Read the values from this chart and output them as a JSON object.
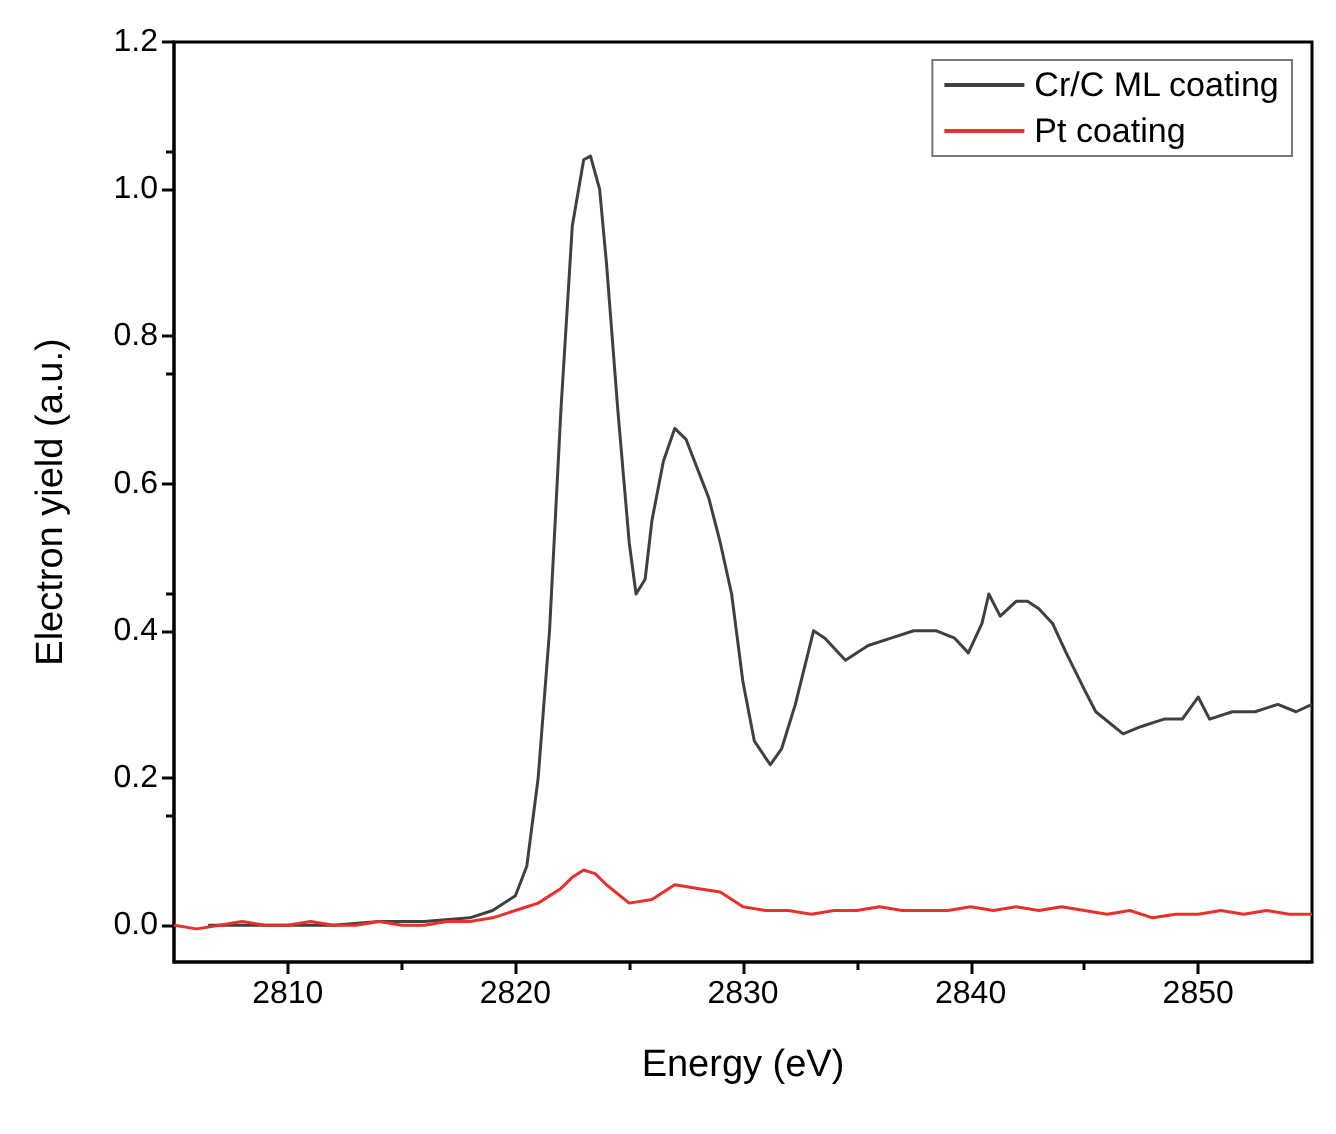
{
  "chart_data": {
    "type": "line",
    "xlabel": "Energy (eV)",
    "ylabel": "Electron yield (a.u.)",
    "xlim": [
      2805,
      2855
    ],
    "xticks": [
      2810,
      2820,
      2830,
      2840,
      2850
    ],
    "ylim": [
      -0.05,
      1.2
    ],
    "yticks": [
      {
        "value": 0,
        "label": "0.0"
      },
      0.2,
      0.4,
      0.6,
      0.8,
      {
        "value": 1,
        "label": "1.0"
      },
      1.2
    ],
    "grid": false,
    "legend": "top right",
    "marker": "none",
    "line_style": "solid",
    "series": [
      {
        "name": "Cr/C ML coating",
        "color": "#404040",
        "x": [
          2806.5,
          2808,
          2810,
          2812,
          2814,
          2816,
          2818,
          2819,
          2820,
          2820.5,
          2821,
          2821.5,
          2822,
          2822.5,
          2823,
          2823.3,
          2823.7,
          2824,
          2824.5,
          2825,
          2825.3,
          2825.7,
          2826,
          2826.5,
          2827,
          2827.5,
          2828,
          2828.5,
          2829,
          2829.5,
          2830,
          2830.5,
          2831.2,
          2831.7,
          2832.3,
          2833.1,
          2833.6,
          2834.5,
          2835.5,
          2836.5,
          2837.5,
          2838.5,
          2839.3,
          2839.9,
          2840.5,
          2840.8,
          2841.3,
          2842,
          2842.5,
          2843,
          2843.6,
          2844.2,
          2845,
          2845.5,
          2846.7,
          2847.5,
          2848.5,
          2849.3,
          2850,
          2850.5,
          2851.5,
          2852.5,
          2853.5,
          2854.3,
          2855
        ],
        "values": [
          0.0,
          0.0,
          0.0,
          0.0,
          0.005,
          0.005,
          0.01,
          0.02,
          0.04,
          0.08,
          0.2,
          0.4,
          0.7,
          0.95,
          1.04,
          1.045,
          1.0,
          0.9,
          0.7,
          0.52,
          0.45,
          0.47,
          0.55,
          0.63,
          0.675,
          0.66,
          0.62,
          0.58,
          0.52,
          0.45,
          0.33,
          0.25,
          0.218,
          0.24,
          0.3,
          0.4,
          0.39,
          0.36,
          0.38,
          0.39,
          0.4,
          0.4,
          0.39,
          0.37,
          0.41,
          0.45,
          0.42,
          0.44,
          0.44,
          0.43,
          0.41,
          0.37,
          0.32,
          0.29,
          0.26,
          0.27,
          0.28,
          0.28,
          0.31,
          0.28,
          0.29,
          0.29,
          0.3,
          0.29,
          0.3
        ]
      },
      {
        "name": "Pt coating",
        "color": "#e8302e",
        "x": [
          2805,
          2806,
          2807,
          2808,
          2809,
          2810,
          2811,
          2812,
          2813,
          2814,
          2815,
          2816,
          2817,
          2818,
          2819,
          2820,
          2821,
          2822,
          2822.5,
          2823,
          2823.5,
          2824,
          2825,
          2826,
          2827,
          2828,
          2829,
          2830,
          2831,
          2832,
          2833,
          2834,
          2835,
          2836,
          2837,
          2838,
          2839,
          2840,
          2841,
          2842,
          2843,
          2844,
          2845,
          2846,
          2847,
          2848,
          2849,
          2850,
          2851,
          2852,
          2853,
          2854,
          2855
        ],
        "values": [
          0.0,
          -0.005,
          0.0,
          0.005,
          0.0,
          0.0,
          0.005,
          0.0,
          0.0,
          0.005,
          0.0,
          0.0,
          0.005,
          0.005,
          0.01,
          0.02,
          0.03,
          0.05,
          0.065,
          0.075,
          0.07,
          0.055,
          0.03,
          0.035,
          0.055,
          0.05,
          0.045,
          0.025,
          0.02,
          0.02,
          0.015,
          0.02,
          0.02,
          0.025,
          0.02,
          0.02,
          0.02,
          0.025,
          0.02,
          0.025,
          0.02,
          0.025,
          0.02,
          0.015,
          0.02,
          0.01,
          0.015,
          0.015,
          0.02,
          0.015,
          0.02,
          0.015,
          0.015
        ]
      }
    ]
  }
}
